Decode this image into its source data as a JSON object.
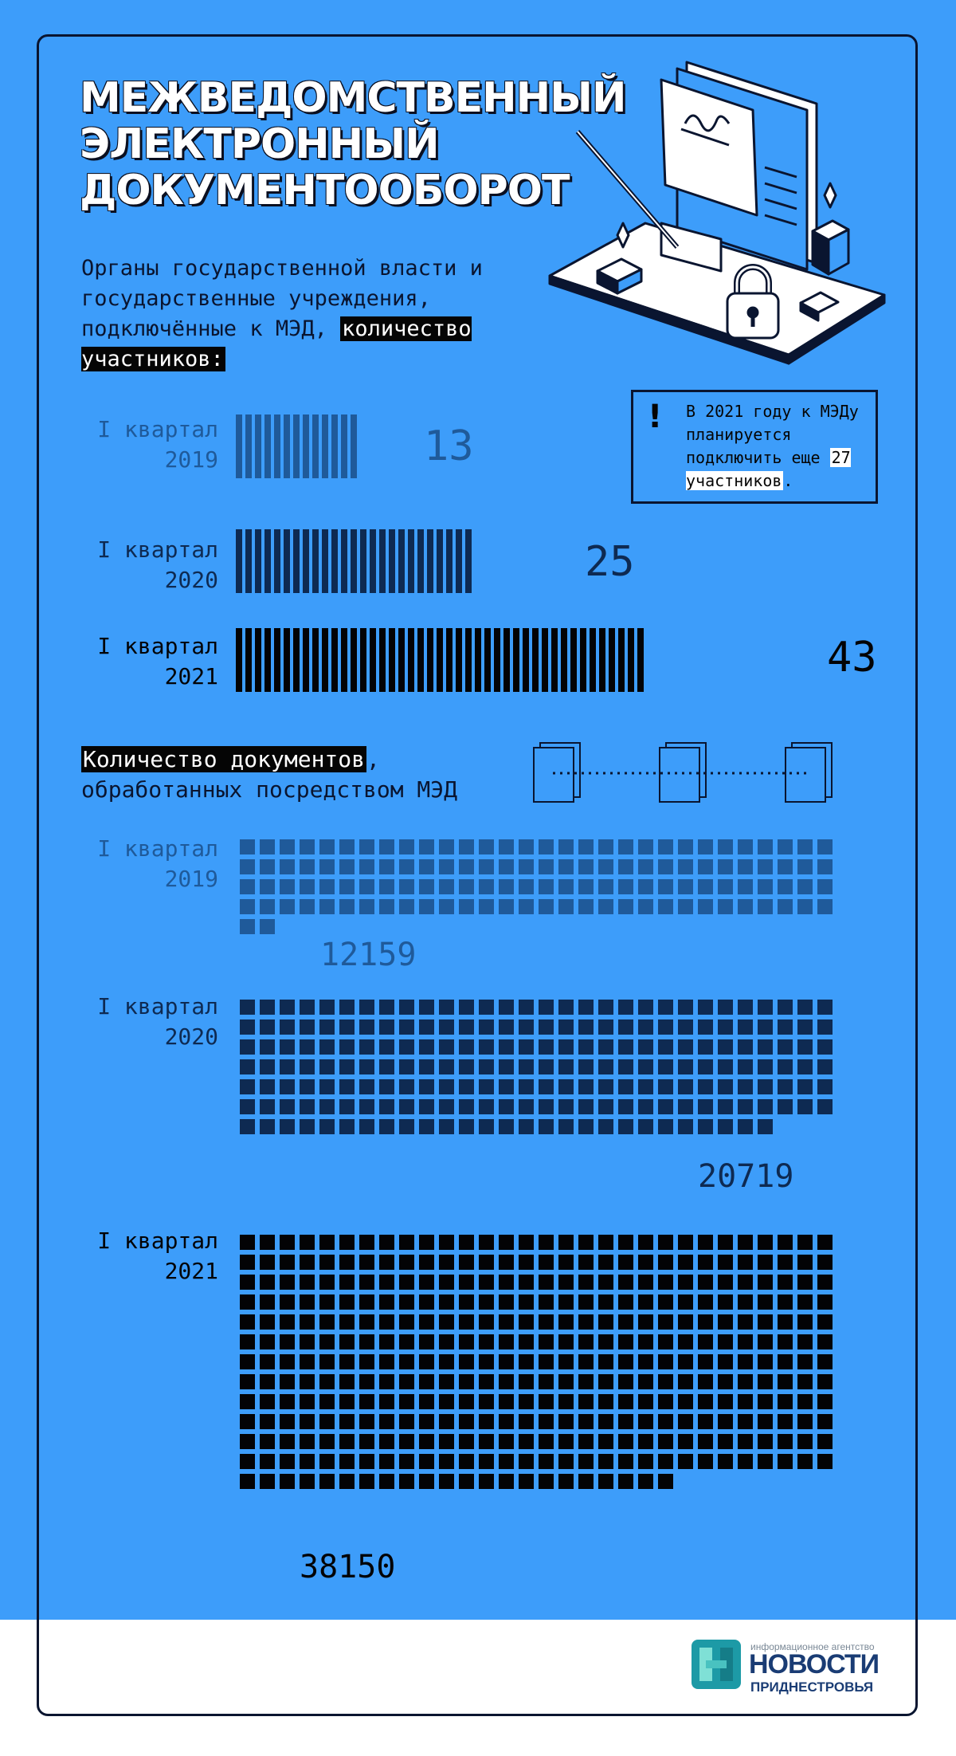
{
  "title": {
    "line1": "МЕЖВЕДОМСТВЕННЫЙ",
    "line2": "ЭЛЕКТРОННЫЙ",
    "line3": "ДОКУМЕНТООБОРОТ"
  },
  "subtitle": {
    "text": "Органы государственной власти и государственные учреждения, подключённые к МЭД,",
    "highlight": "количество участников:"
  },
  "note": {
    "mark": "!",
    "text": "В 2021 году к МЭДу планируется подключить еще",
    "highlight": "27 участников",
    "end": "."
  },
  "section2": {
    "highlight": "Количество документов",
    "text_rest": ",",
    "line2": "обработанных посредством МЭД"
  },
  "colors": {
    "background": "#3d9dfa",
    "level_2019": "#1f5a9a",
    "level_2020": "#0e2a52",
    "level_2021": "#030305"
  },
  "chart_data": [
    {
      "type": "bar",
      "categories": [
        "I квартал 2019",
        "I квартал 2020",
        "I квартал 2021"
      ],
      "values": [
        13,
        25,
        43
      ],
      "title": "Органы государственной власти и государственные учреждения, подключённые к МЭД, количество участников"
    },
    {
      "type": "bar",
      "categories": [
        "I квартал 2019",
        "I квартал 2020",
        "I квартал 2021"
      ],
      "values": [
        12159,
        20719,
        38150
      ],
      "title": "Количество документов, обработанных посредством МЭД"
    }
  ],
  "rows": {
    "bars": [
      {
        "label1": "I квартал",
        "label2": "2019",
        "value": "13"
      },
      {
        "label1": "I квартал",
        "label2": "2020",
        "value": "25"
      },
      {
        "label1": "I квартал",
        "label2": "2021",
        "value": "43"
      }
    ],
    "squares": [
      {
        "label1": "I квартал",
        "label2": "2019",
        "value": "12159"
      },
      {
        "label1": "I квартал",
        "label2": "2020",
        "value": "20719"
      },
      {
        "label1": "I квартал",
        "label2": "2021",
        "value": "38150"
      }
    ]
  },
  "logo": {
    "tagline": "информационное агентство",
    "name": "НОВОСТИ",
    "region": "ПРИДНЕСТРОВЬЯ"
  }
}
